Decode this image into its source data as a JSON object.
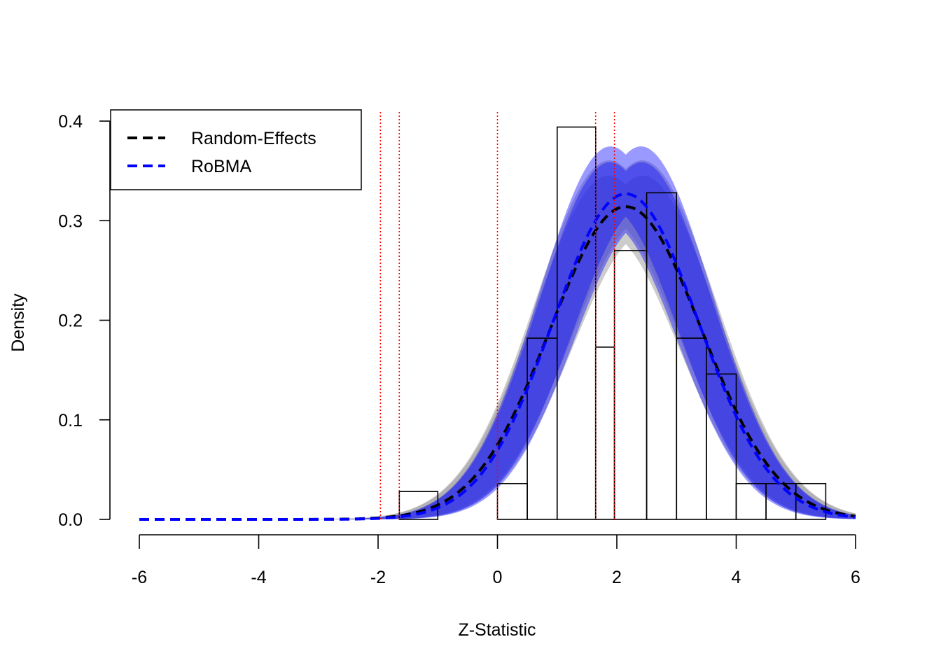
{
  "chart_data": {
    "type": "histogram",
    "xlabel": "Z-Statistic",
    "ylabel": "Density",
    "xlim": [
      -6,
      6
    ],
    "ylim": [
      0,
      0.4
    ],
    "x_ticks": [
      "-6",
      "-4",
      "-2",
      "0",
      "2",
      "4",
      "6"
    ],
    "y_ticks": [
      "0.0",
      "0.1",
      "0.2",
      "0.3",
      "0.4"
    ],
    "legend": {
      "position": "top-left",
      "entries": [
        {
          "label": "Random-Effects",
          "color": "#000000",
          "style": "dashed"
        },
        {
          "label": "RoBMA",
          "color": "#0000ff",
          "style": "dashed"
        }
      ]
    },
    "histogram": {
      "bins": [
        {
          "x0": -1.645,
          "x1": -1.0,
          "density": 0.028
        },
        {
          "x0": -1.0,
          "x1": 0.0,
          "density": 0.0
        },
        {
          "x0": 0.0,
          "x1": 0.5,
          "density": 0.036
        },
        {
          "x0": 0.5,
          "x1": 1.0,
          "density": 0.182
        },
        {
          "x0": 1.0,
          "x1": 1.645,
          "density": 0.394
        },
        {
          "x0": 1.645,
          "x1": 1.96,
          "density": 0.173
        },
        {
          "x0": 1.96,
          "x1": 2.5,
          "density": 0.27
        },
        {
          "x0": 2.5,
          "x1": 3.0,
          "density": 0.328
        },
        {
          "x0": 3.0,
          "x1": 3.5,
          "density": 0.182
        },
        {
          "x0": 3.5,
          "x1": 4.0,
          "density": 0.146
        },
        {
          "x0": 4.0,
          "x1": 4.5,
          "density": 0.036
        },
        {
          "x0": 4.5,
          "x1": 5.0,
          "density": 0.036
        },
        {
          "x0": 5.0,
          "x1": 5.5,
          "density": 0.036
        }
      ]
    },
    "reference_lines": {
      "x": [
        -1.96,
        -1.645,
        0,
        1.645,
        1.96
      ],
      "color": "#ff0000",
      "style": "dotted"
    },
    "series": [
      {
        "name": "Random-Effects",
        "color": "#000000",
        "band_color": "#808080",
        "mean": 2.15,
        "sd": 1.27,
        "peak_scale": 1.0
      },
      {
        "name": "RoBMA",
        "color": "#0000ff",
        "band_color": "#0000ff",
        "mean": 2.15,
        "sd": 1.22,
        "peak_scale": 1.0
      }
    ]
  }
}
